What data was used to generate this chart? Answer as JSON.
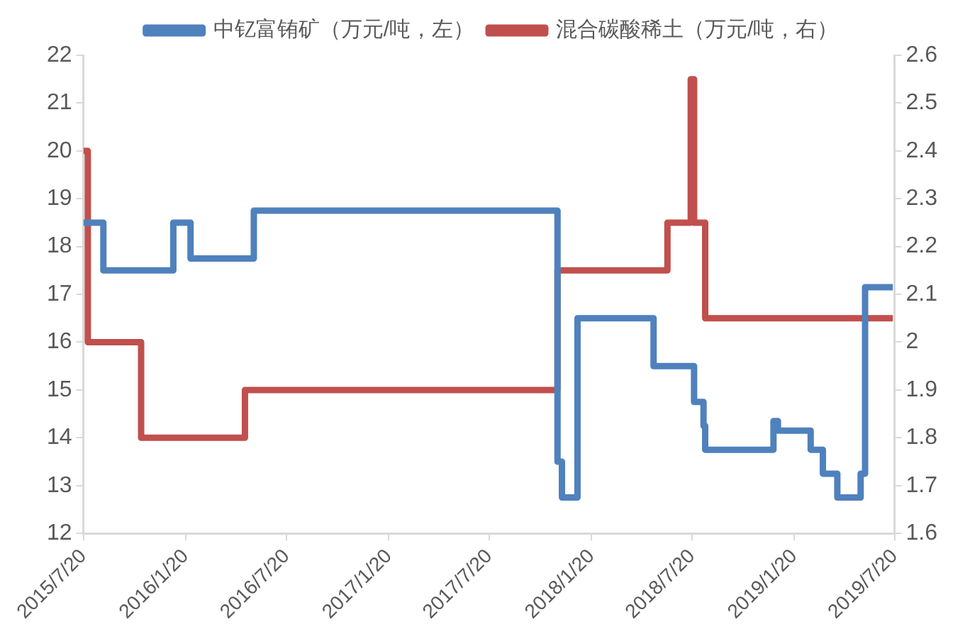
{
  "chart_data": {
    "type": "step",
    "series": [
      {
        "name": "中钇富铕矿（万元/吨，左）",
        "color": "#4f81bd",
        "x": [
          "2015-07-20",
          "2015-08-25",
          "2015-12-29",
          "2016-01-29",
          "2016-05-22",
          "2017-11-20",
          "2017-11-28",
          "2017-12-26",
          "2018-05-12",
          "2018-07-24",
          "2018-08-10",
          "2018-08-13",
          "2018-12-14",
          "2018-12-22",
          "2019-02-19",
          "2019-03-13",
          "2019-04-08",
          "2019-05-20",
          "2019-05-28",
          "2019-07-17"
        ],
        "values": [
          18.5,
          17.5,
          18.5,
          17.75,
          18.75,
          13.5,
          12.75,
          16.5,
          15.5,
          14.75,
          14.25,
          13.75,
          14.35,
          14.15,
          13.75,
          13.25,
          12.75,
          13.25,
          17.15,
          17.15
        ]
      },
      {
        "name": "混合碳酸稀土（万元/吨，右）",
        "color": "#c0504d",
        "axis": "y2",
        "x": [
          "2015-07-20",
          "2015-07-28",
          "2015-11-01",
          "2016-05-06",
          "2017-11-20",
          "2018-06-06",
          "2018-07-18",
          "2018-07-24",
          "2018-08-13",
          "2019-07-17"
        ],
        "values": [
          2.4,
          2.0,
          1.8,
          1.9,
          2.15,
          2.25,
          2.55,
          2.25,
          2.05,
          2.05
        ]
      }
    ],
    "xlim": [
      "2015-07-20",
      "2019-07-20"
    ],
    "xticks": [
      {
        "value": "2015-07-20",
        "label": "2015/7/20"
      },
      {
        "value": "2016-01-20",
        "label": "2016/1/20"
      },
      {
        "value": "2016-07-20",
        "label": "2016/7/20"
      },
      {
        "value": "2017-01-20",
        "label": "2017/1/20"
      },
      {
        "value": "2017-07-20",
        "label": "2017/7/20"
      },
      {
        "value": "2018-01-20",
        "label": "2018/1/20"
      },
      {
        "value": "2018-07-20",
        "label": "2018/7/20"
      },
      {
        "value": "2019-01-20",
        "label": "2019/1/20"
      },
      {
        "value": "2019-07-20",
        "label": "2019/7/20"
      }
    ],
    "ylim": [
      12,
      22
    ],
    "yticks": [
      12,
      13,
      14,
      15,
      16,
      17,
      18,
      19,
      20,
      21,
      22
    ],
    "y2lim": [
      1.6,
      2.6
    ],
    "y2ticks": [
      1.6,
      1.7,
      1.8,
      1.9,
      2,
      2.1,
      2.2,
      2.3,
      2.4,
      2.5,
      2.6
    ],
    "grid": false,
    "legend": "top",
    "marker": "none",
    "line_style": "solid"
  }
}
